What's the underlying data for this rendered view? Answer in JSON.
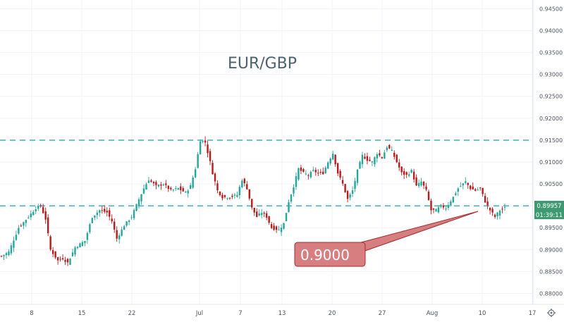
{
  "chart_data": {
    "type": "candlestick",
    "title": "EUR/GBP",
    "y_ticks": [
      "0.94500",
      "0.94000",
      "0.93500",
      "0.93000",
      "0.92500",
      "0.92000",
      "0.91500",
      "0.91000",
      "0.90500",
      "0.90000",
      "0.89500",
      "0.89000",
      "0.88500",
      "0.88000"
    ],
    "x_ticks": [
      "8",
      "15",
      "22",
      "Jul",
      "7",
      "13",
      "20",
      "27",
      "Aug",
      "10",
      "17"
    ],
    "ylim": [
      0.8775,
      0.947
    ],
    "grid": true,
    "last_price": "0.89957",
    "countdown": "01:39:11",
    "horizontal_levels": [
      0.915,
      0.9
    ],
    "annotation": {
      "text": "0.9000"
    },
    "colors": {
      "up": "#26a69a",
      "down": "#b71c1c",
      "level_line": "#4db6c8",
      "price_label": "#3d9970",
      "callout_fill": "#d77f80",
      "callout_border": "#a52a2a",
      "title": "#4c6271"
    },
    "price_path": [
      [
        0,
        0.8885
      ],
      [
        3,
        0.8895
      ],
      [
        7,
        0.895
      ],
      [
        11,
        0.8975
      ],
      [
        14,
        0.8995
      ],
      [
        16,
        0.9
      ],
      [
        18,
        0.897
      ],
      [
        20,
        0.89
      ],
      [
        23,
        0.8875
      ],
      [
        25,
        0.888
      ],
      [
        27,
        0.887
      ],
      [
        30,
        0.8905
      ],
      [
        34,
        0.892
      ],
      [
        37,
        0.8975
      ],
      [
        40,
        0.899
      ],
      [
        43,
        0.8985
      ],
      [
        45,
        0.8965
      ],
      [
        47,
        0.8925
      ],
      [
        50,
        0.8955
      ],
      [
        53,
        0.8975
      ],
      [
        56,
        0.9015
      ],
      [
        58,
        0.904
      ],
      [
        60,
        0.906
      ],
      [
        63,
        0.9045
      ],
      [
        66,
        0.905
      ],
      [
        69,
        0.9035
      ],
      [
        72,
        0.904
      ],
      [
        75,
        0.903
      ],
      [
        77,
        0.9045
      ],
      [
        79,
        0.9085
      ],
      [
        81,
        0.915
      ],
      [
        83,
        0.9145
      ],
      [
        85,
        0.91
      ],
      [
        86,
        0.9075
      ],
      [
        88,
        0.9035
      ],
      [
        90,
        0.902
      ],
      [
        93,
        0.902
      ],
      [
        96,
        0.9025
      ],
      [
        98,
        0.906
      ],
      [
        100,
        0.904
      ],
      [
        102,
        0.8995
      ],
      [
        104,
        0.8975
      ],
      [
        106,
        0.8985
      ],
      [
        108,
        0.8975
      ],
      [
        110,
        0.895
      ],
      [
        113,
        0.8945
      ],
      [
        115,
        0.896
      ],
      [
        117,
        0.901
      ],
      [
        119,
        0.9045
      ],
      [
        121,
        0.9085
      ],
      [
        123,
        0.9075
      ],
      [
        125,
        0.907
      ],
      [
        127,
        0.908
      ],
      [
        129,
        0.9075
      ],
      [
        131,
        0.9075
      ],
      [
        133,
        0.91
      ],
      [
        135,
        0.912
      ],
      [
        137,
        0.9075
      ],
      [
        139,
        0.905
      ],
      [
        141,
        0.9015
      ],
      [
        143,
        0.9035
      ],
      [
        145,
        0.908
      ],
      [
        147,
        0.9115
      ],
      [
        149,
        0.9105
      ],
      [
        151,
        0.91
      ],
      [
        153,
        0.912
      ],
      [
        155,
        0.911
      ],
      [
        157,
        0.9135
      ],
      [
        159,
        0.9125
      ],
      [
        161,
        0.91
      ],
      [
        163,
        0.9075
      ],
      [
        165,
        0.907
      ],
      [
        167,
        0.908
      ],
      [
        169,
        0.9045
      ],
      [
        171,
        0.9055
      ],
      [
        173,
        0.9035
      ],
      [
        175,
        0.899
      ],
      [
        177,
        0.899
      ],
      [
        179,
        0.9
      ],
      [
        181,
        0.8995
      ],
      [
        184,
        0.902
      ],
      [
        186,
        0.904
      ],
      [
        189,
        0.9055
      ],
      [
        191,
        0.904
      ],
      [
        193,
        0.9035
      ],
      [
        195,
        0.904
      ],
      [
        197,
        0.901
      ],
      [
        199,
        0.899
      ],
      [
        201,
        0.8975
      ],
      [
        203,
        0.899
      ],
      [
        205,
        0.8995
      ]
    ]
  }
}
